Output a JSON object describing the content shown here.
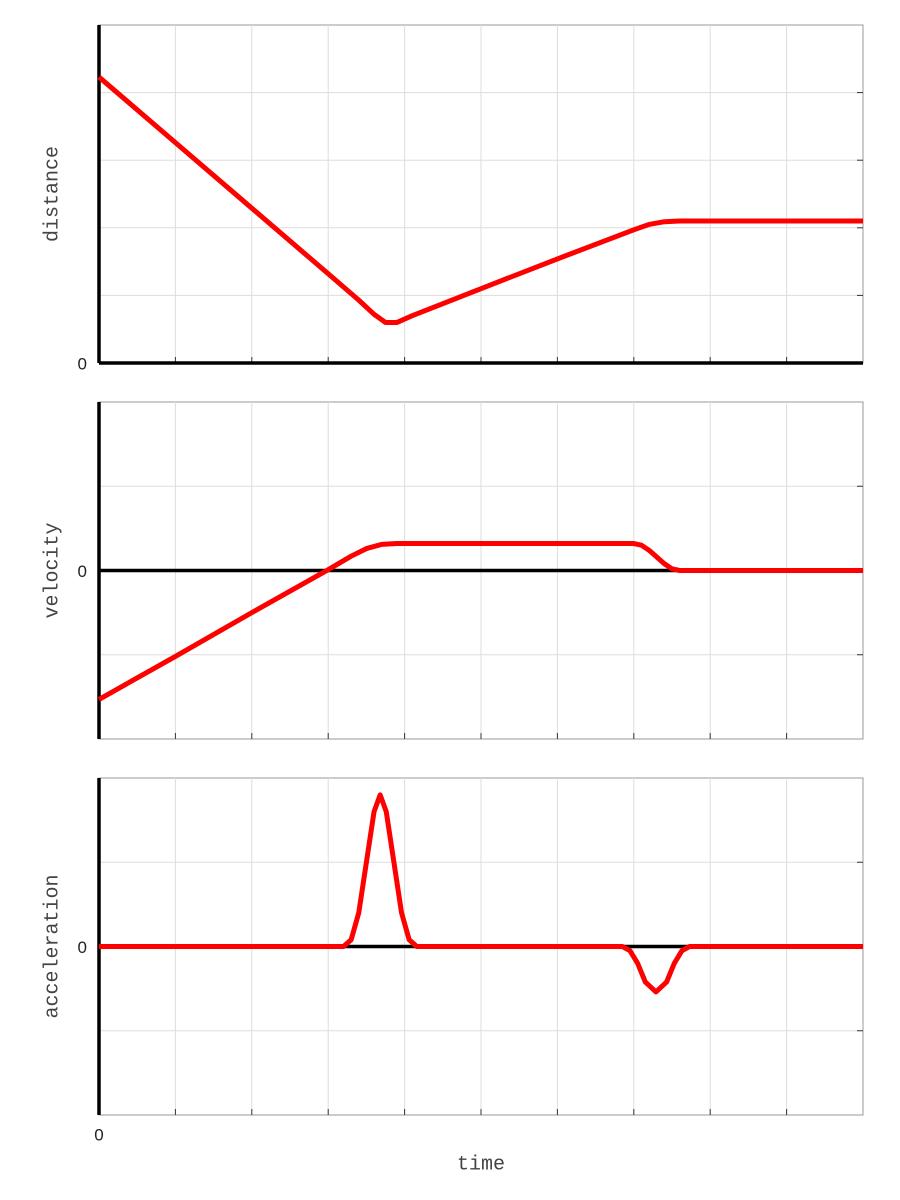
{
  "chart_data": [
    {
      "type": "line",
      "ylabel": "distance",
      "x": [
        0,
        1,
        2,
        3,
        3.4,
        3.6,
        3.75,
        3.9,
        4.1,
        5,
        6,
        7,
        7.2,
        7.4,
        7.6,
        10
      ],
      "values": [
        4.23,
        3.26,
        2.29,
        1.32,
        0.93,
        0.72,
        0.6,
        0.6,
        0.7,
        1.1,
        1.54,
        1.97,
        2.05,
        2.09,
        2.1,
        2.1
      ],
      "color": "#ff0000",
      "xlim": [
        0,
        10
      ],
      "ylim": [
        0,
        5
      ],
      "yticks": [
        0
      ],
      "grid_x": [
        1,
        2,
        3,
        4,
        5,
        6,
        7,
        8,
        9
      ],
      "grid_y": [
        1,
        2,
        3,
        4
      ]
    },
    {
      "type": "line",
      "ylabel": "velocity",
      "x": [
        0,
        1,
        2,
        3,
        3.3,
        3.5,
        3.7,
        3.9,
        7.0,
        7.1,
        7.2,
        7.3,
        7.4,
        7.5,
        7.6,
        10
      ],
      "values": [
        -1.53,
        -1.02,
        -0.5,
        0.01,
        0.17,
        0.26,
        0.31,
        0.32,
        0.32,
        0.3,
        0.24,
        0.16,
        0.08,
        0.02,
        0,
        0
      ],
      "color": "#ff0000",
      "xlim": [
        0,
        10
      ],
      "ylim": [
        -2,
        2
      ],
      "yticks": [
        0
      ],
      "grid_x": [
        1,
        2,
        3,
        4,
        5,
        6,
        7,
        8,
        9
      ],
      "grid_y": [
        -1,
        1
      ]
    },
    {
      "type": "line",
      "ylabel": "acceleration",
      "xlabel": "time",
      "x": [
        0,
        3.2,
        3.3,
        3.4,
        3.5,
        3.6,
        3.68,
        3.76,
        3.86,
        3.96,
        4.06,
        4.16,
        6.85,
        6.95,
        7.05,
        7.15,
        7.29,
        7.43,
        7.53,
        7.63,
        7.73,
        10
      ],
      "values": [
        0,
        0,
        0.08,
        0.4,
        1.0,
        1.6,
        1.8,
        1.6,
        1.0,
        0.4,
        0.08,
        0,
        0,
        -0.05,
        -0.2,
        -0.42,
        -0.54,
        -0.42,
        -0.2,
        -0.05,
        0,
        0
      ],
      "color": "#ff0000",
      "xlim": [
        0,
        10
      ],
      "ylim": [
        -2,
        2
      ],
      "yticks": [
        0
      ],
      "xticks": [
        0
      ],
      "grid_x": [
        1,
        2,
        3,
        4,
        5,
        6,
        7,
        8,
        9
      ],
      "grid_y": [
        -1,
        1
      ]
    }
  ]
}
